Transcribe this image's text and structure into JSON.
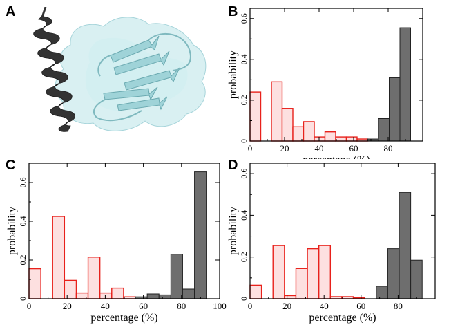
{
  "panels": {
    "a": "A",
    "b": "B",
    "c": "C",
    "d": "D"
  },
  "colors": {
    "red_edge": "#e8211b",
    "red_fill": "#fde0e0",
    "gray_fill": "#6e6e6e",
    "helix": "#333333",
    "surface": "#bfe6ea",
    "sheet": "#9fd3d8"
  },
  "chart_data": [
    {
      "panel": "B",
      "type": "bar",
      "xlabel": "percentage (%)",
      "ylabel": "probability",
      "xlim": [
        0,
        100
      ],
      "ylim": [
        0,
        0.65
      ],
      "xticks": [
        "0",
        "20",
        "40",
        "60",
        "80"
      ],
      "yticks": [
        "0",
        "0.2",
        "0.4",
        "0.6"
      ],
      "bin_width": 6.2,
      "series": [
        {
          "color": "red",
          "x": [
            3.1,
            15.5,
            21.7,
            27.9,
            34.1,
            40.3,
            46.5,
            52.7,
            58.9,
            65.1
          ],
          "values": [
            0.24,
            0.29,
            0.16,
            0.07,
            0.095,
            0.02,
            0.045,
            0.02,
            0.02,
            0.01
          ]
        },
        {
          "color": "gray",
          "x": [
            71.3,
            77.5,
            83.7,
            89.9
          ],
          "values": [
            0.01,
            0.11,
            0.31,
            0.555
          ]
        }
      ]
    },
    {
      "panel": "C",
      "type": "bar",
      "xlabel": "percentage (%)",
      "ylabel": "probability",
      "xlim": [
        0,
        100
      ],
      "ylim": [
        0,
        0.7
      ],
      "xticks": [
        "0",
        "20",
        "40",
        "60",
        "80",
        "100"
      ],
      "yticks": [
        "0",
        "0.2",
        "0.4",
        "0.6"
      ],
      "bin_width": 6.2,
      "series": [
        {
          "color": "red",
          "x": [
            3.1,
            15.5,
            21.7,
            27.9,
            34.1,
            40.3,
            46.5,
            52.7
          ],
          "values": [
            0.155,
            0.425,
            0.095,
            0.03,
            0.215,
            0.03,
            0.055,
            0.01
          ]
        },
        {
          "color": "gray",
          "x": [
            58.9,
            65.1,
            71.3,
            77.5,
            83.7,
            89.9
          ],
          "values": [
            0.01,
            0.025,
            0.02,
            0.23,
            0.05,
            0.655
          ]
        }
      ]
    },
    {
      "panel": "D",
      "type": "bar",
      "xlabel": "percentage (%)",
      "ylabel": "probability",
      "xlim": [
        0,
        100
      ],
      "ylim": [
        0,
        0.65
      ],
      "xticks": [
        "0",
        "20",
        "40",
        "60",
        "80"
      ],
      "yticks": [
        "0",
        "0.2",
        "0.4",
        "0.6"
      ],
      "bin_width": 6.2,
      "series": [
        {
          "color": "red",
          "x": [
            3.1,
            15.5,
            21.7,
            27.9,
            34.1,
            40.3,
            46.5,
            52.7,
            58.9
          ],
          "values": [
            0.065,
            0.255,
            0.015,
            0.145,
            0.24,
            0.255,
            0.01,
            0.01,
            0.005
          ]
        },
        {
          "color": "gray",
          "x": [
            71.3,
            77.5,
            83.7,
            89.9
          ],
          "values": [
            0.06,
            0.24,
            0.51,
            0.185
          ]
        }
      ]
    }
  ]
}
